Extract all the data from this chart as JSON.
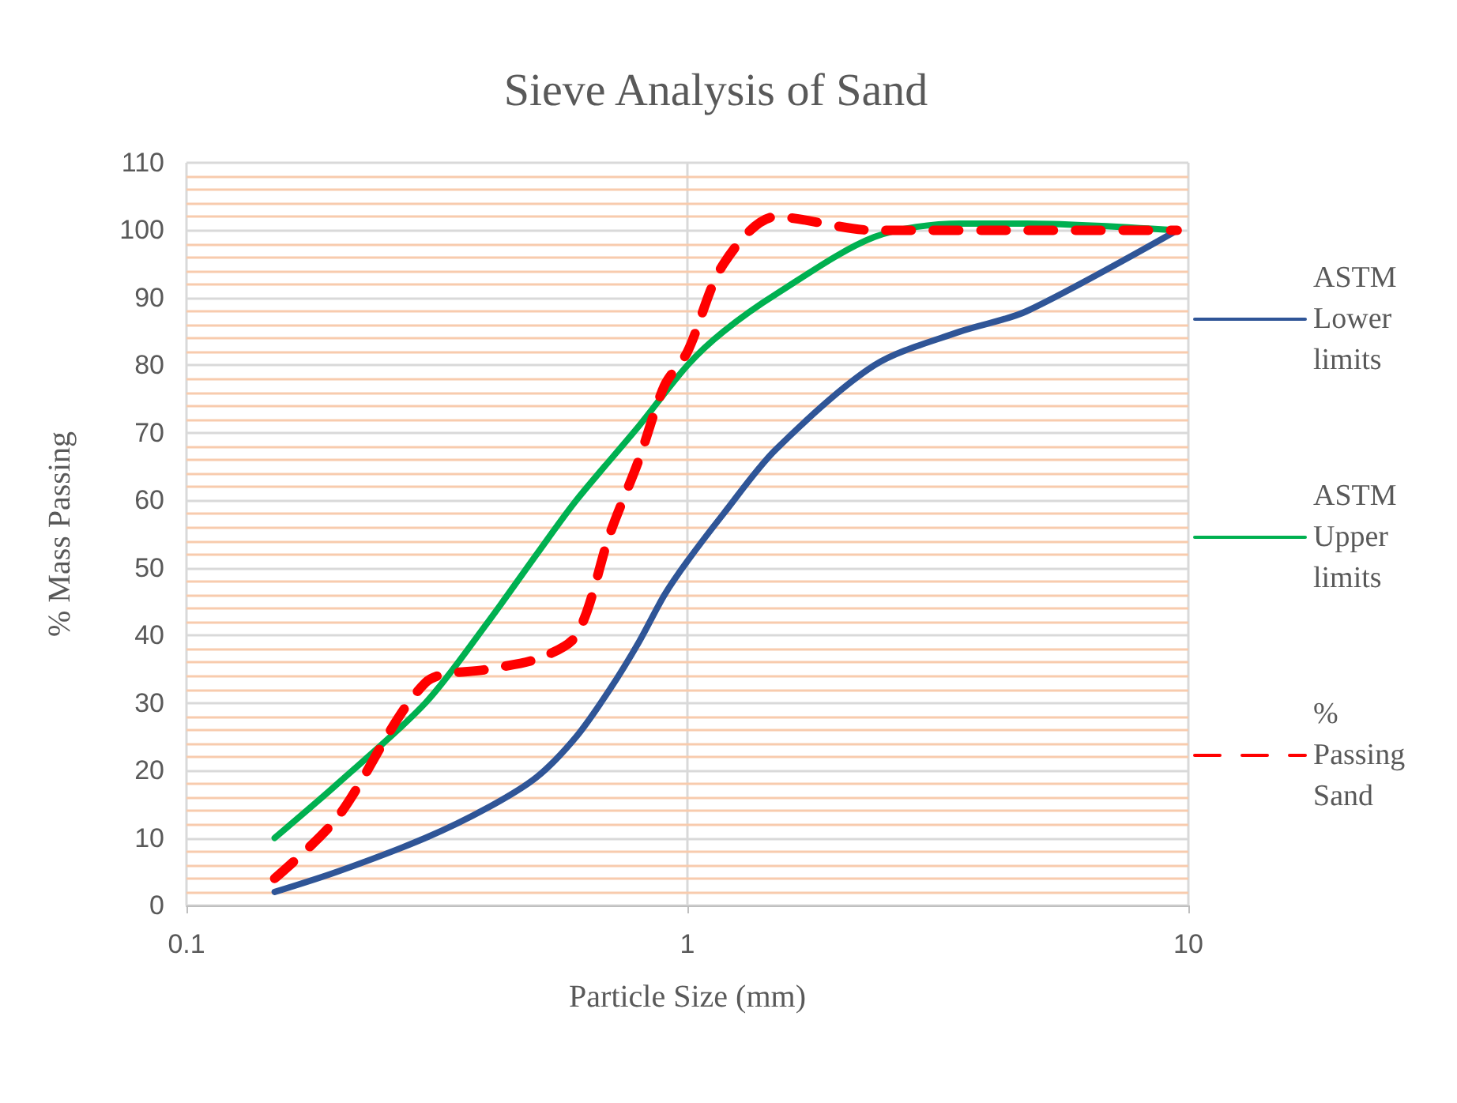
{
  "chart_data": {
    "type": "line",
    "title": "Sieve Analysis of Sand",
    "xlabel": "Particle Size (mm)",
    "ylabel": "% Mass Passing",
    "log": "x",
    "xlim": [
      0.1,
      10
    ],
    "xticks": [
      0.1,
      1,
      10
    ],
    "ylim": [
      0,
      110
    ],
    "yticks": [
      0,
      {
        "value": 2,
        "label": null
      },
      {
        "value": 4,
        "label": null
      },
      {
        "value": 6,
        "label": null
      },
      {
        "value": 8,
        "label": null
      },
      10,
      {
        "value": 12,
        "label": null
      },
      {
        "value": 14,
        "label": null
      },
      {
        "value": 16,
        "label": null
      },
      {
        "value": 18,
        "label": null
      },
      20,
      {
        "value": 22,
        "label": null
      },
      {
        "value": 24,
        "label": null
      },
      {
        "value": 26,
        "label": null
      },
      {
        "value": 28,
        "label": null
      },
      30,
      {
        "value": 32,
        "label": null
      },
      {
        "value": 34,
        "label": null
      },
      {
        "value": 36,
        "label": null
      },
      {
        "value": 38,
        "label": null
      },
      40,
      {
        "value": 42,
        "label": null
      },
      {
        "value": 44,
        "label": null
      },
      {
        "value": 46,
        "label": null
      },
      {
        "value": 48,
        "label": null
      },
      50,
      {
        "value": 52,
        "label": null
      },
      {
        "value": 54,
        "label": null
      },
      {
        "value": 56,
        "label": null
      },
      {
        "value": 58,
        "label": null
      },
      60,
      {
        "value": 62,
        "label": null
      },
      {
        "value": 64,
        "label": null
      },
      {
        "value": 66,
        "label": null
      },
      {
        "value": 68,
        "label": null
      },
      70,
      {
        "value": 72,
        "label": null
      },
      {
        "value": 74,
        "label": null
      },
      {
        "value": 76,
        "label": null
      },
      {
        "value": 78,
        "label": null
      },
      80,
      {
        "value": 82,
        "label": null
      },
      {
        "value": 84,
        "label": null
      },
      {
        "value": 86,
        "label": null
      },
      {
        "value": 88,
        "label": null
      },
      90,
      {
        "value": 92,
        "label": null
      },
      {
        "value": 94,
        "label": null
      },
      {
        "value": 96,
        "label": null
      },
      {
        "value": 98,
        "label": null
      },
      100,
      {
        "value": 102,
        "label": null
      },
      {
        "value": 104,
        "label": null
      },
      {
        "value": 106,
        "label": null
      },
      {
        "value": 108,
        "label": null
      },
      110
    ],
    "grid": true,
    "legend": "right",
    "marker": "none",
    "line_style": "solid",
    "series": [
      {
        "name": "ASTM Lower limits",
        "color": "#2f5597",
        "x": [
          0.15,
          0.2,
          0.3,
          0.4,
          0.5,
          0.6,
          0.7,
          0.8,
          0.9,
          1.0,
          1.18,
          1.5,
          2.36,
          3.5,
          4.75,
          9.5
        ],
        "values": [
          2,
          5,
          10,
          14.5,
          19,
          25,
          32,
          39,
          46,
          51,
          58,
          67.5,
          80,
          85,
          88,
          100
        ]
      },
      {
        "name": "ASTM Upper limits",
        "color": "#00b050",
        "x": [
          0.15,
          0.2,
          0.3,
          0.4,
          0.5,
          0.6,
          0.8,
          1.0,
          1.18,
          1.5,
          2.36,
          3.5,
          4.75,
          9.5
        ],
        "values": [
          10,
          18,
          30,
          42,
          52,
          60,
          71,
          80,
          85,
          90.5,
          99,
          101,
          101,
          100
        ]
      },
      {
        "name": "% Passing Sand",
        "color": "#ff0000",
        "line_style": "dashed",
        "x": [
          0.15,
          0.2,
          0.3,
          0.4,
          0.5,
          0.6,
          0.7,
          0.8,
          0.9,
          1.0,
          1.18,
          1.5,
          2.36,
          4.75,
          9.5
        ],
        "values": [
          4,
          13,
          33,
          35,
          36.5,
          40,
          55,
          66,
          77,
          82,
          95,
          102,
          100,
          100,
          100
        ]
      }
    ]
  }
}
